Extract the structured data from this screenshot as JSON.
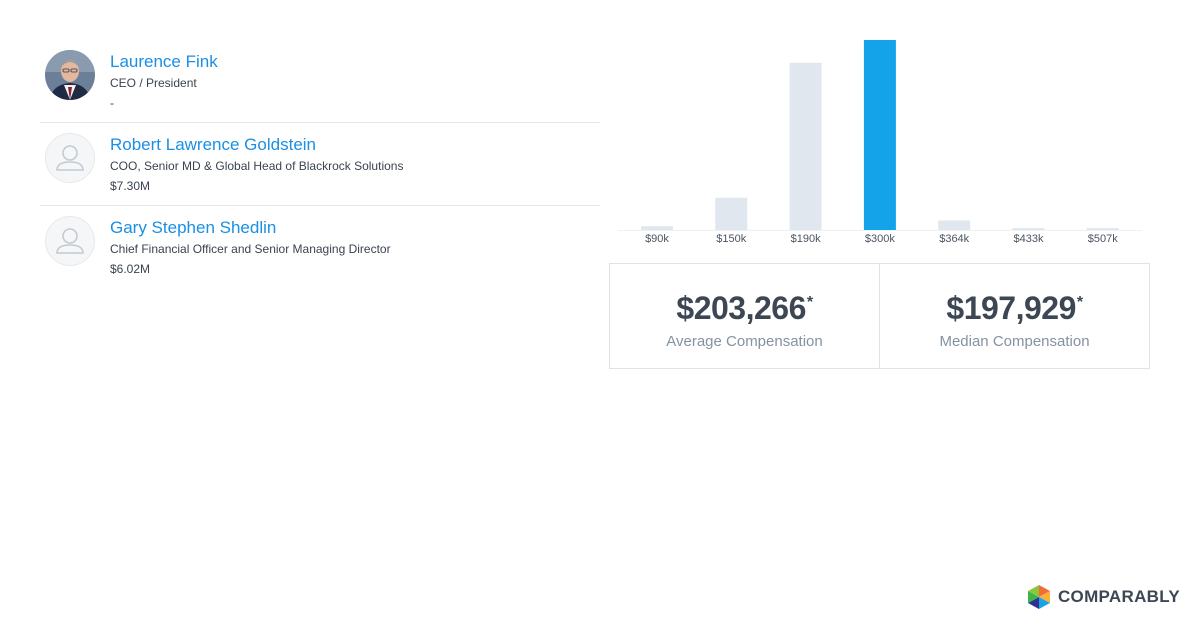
{
  "executives": [
    {
      "name": "Laurence Fink",
      "title": "CEO / President",
      "compensation": "-",
      "avatar": "photo"
    },
    {
      "name": "Robert Lawrence Goldstein",
      "title": "COO, Senior MD & Global Head of Blackrock Solutions",
      "compensation": "$7.30M",
      "avatar": "person-placeholder-icon"
    },
    {
      "name": "Gary Stephen Shedlin",
      "title": "Chief Financial Officer and Senior Managing Director",
      "compensation": "$6.02M",
      "avatar": "person-placeholder-icon"
    }
  ],
  "chart_data": {
    "type": "bar",
    "categories": [
      "$90k",
      "$150k",
      "$190k",
      "$300k",
      "$364k",
      "$433k",
      "$507k"
    ],
    "values": [
      2,
      17,
      88,
      100,
      5,
      1,
      1
    ],
    "highlighted_index": 3,
    "colors": {
      "bar": "#e1e7ee",
      "highlight": "#14a3e8"
    },
    "grid": false
  },
  "stats": {
    "average": {
      "value": "$203,266",
      "marker": "*",
      "label": "Average Compensation"
    },
    "median": {
      "value": "$197,929",
      "marker": "*",
      "label": "Median Compensation"
    }
  },
  "brand": {
    "name": "COMPARABLY"
  }
}
